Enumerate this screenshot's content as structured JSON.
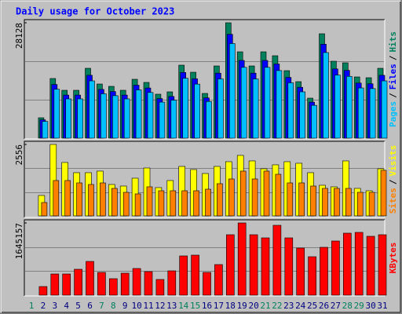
{
  "chart_data": [
    {
      "type": "bar",
      "title": "Daily usage for October 2023",
      "ylim": [
        0,
        28128
      ],
      "yticks": [
        28128
      ],
      "grid_divisions": 3,
      "legend_separator": "/",
      "series": [
        {
          "name": "Hits",
          "color": "#00805c",
          "values": [
            null,
            4975,
            14543,
            11672,
            11672,
            17030,
            13203,
            12629,
            11672,
            14351,
            13586,
            10716,
            11290,
            17796,
            16073,
            10907,
            17604,
            28128,
            21048,
            17604,
            21048,
            20092,
            16456,
            13777,
            9759,
            25449,
            18752,
            18370,
            14925,
            14734,
            17030
          ]
        },
        {
          "name": "Files",
          "color": "#0000ff",
          "values": [
            null,
            4478,
            13089,
            10505,
            10505,
            15327,
            11883,
            11366,
            10505,
            12916,
            12227,
            9644,
            10161,
            16016,
            14466,
            9816,
            15844,
            25315,
            18943,
            15844,
            18943,
            18083,
            14810,
            12399,
            8783,
            22904,
            16877,
            16533,
            13433,
            13261,
            15327
          ]
        },
        {
          "name": "Pages",
          "color": "#00c0ff",
          "values": [
            null,
            4080,
            11925,
            9571,
            9571,
            13965,
            10826,
            10356,
            9571,
            11768,
            11141,
            8787,
            9258,
            14593,
            13180,
            8944,
            14435,
            23065,
            17259,
            14435,
            17259,
            16475,
            13494,
            11297,
            8002,
            20868,
            15377,
            15063,
            12239,
            12082,
            13965
          ]
        }
      ]
    },
    {
      "type": "bar",
      "ylim": [
        0,
        2556
      ],
      "yticks": [
        2556
      ],
      "grid_divisions": 3,
      "legend_separator": "/",
      "series": [
        {
          "name": "Visits",
          "color": "#ffff00",
          "values": [
            null,
            731,
            2556,
            1911,
            1546,
            1546,
            1602,
            1124,
            1068,
            1349,
            1714,
            1012,
            1265,
            1770,
            1658,
            1517,
            1770,
            1939,
            2164,
            1967,
            1686,
            1827,
            1939,
            1883,
            1546,
            1096,
            1040,
            1967,
            984,
            899,
            1686
          ]
        },
        {
          "name": "Sites",
          "color": "#ff8000",
          "values": [
            null,
            478,
            1265,
            1265,
            1180,
            1124,
            1180,
            984,
            843,
            787,
            1040,
            899,
            899,
            899,
            899,
            955,
            1152,
            1321,
            1602,
            1321,
            1602,
            1489,
            1180,
            1180,
            1068,
            984,
            984,
            984,
            843,
            843,
            1630
          ]
        }
      ]
    },
    {
      "type": "bar",
      "ylim": [
        0,
        1645157
      ],
      "yticks": [
        1645157
      ],
      "grid_divisions": 3,
      "categories": [
        "1",
        "2",
        "3",
        "4",
        "5",
        "6",
        "7",
        "8",
        "9",
        "10",
        "11",
        "12",
        "13",
        "14",
        "15",
        "16",
        "17",
        "18",
        "19",
        "20",
        "21",
        "22",
        "23",
        "24",
        "25",
        "26",
        "27",
        "28",
        "29",
        "30",
        "31"
      ],
      "highlight_indices": [
        0,
        6,
        7,
        13,
        14,
        20,
        21,
        27,
        28
      ],
      "highlight_color": "#00805c",
      "series": [
        {
          "name": "KBytes",
          "color": "#ff0000",
          "values": [
            null,
            196702,
            482814,
            482814,
            590106,
            768926,
            518578,
            375522,
            500696,
            607988,
            536460,
            357640,
            554342,
            894100,
            911982,
            518578,
            697398,
            1376914,
            1645157,
            1376914,
            1305386,
            1591498,
            1305386,
            1072920,
            876218,
            1090802,
            1233858,
            1412678,
            1430560,
            1341150,
            1376914
          ]
        }
      ]
    }
  ]
}
